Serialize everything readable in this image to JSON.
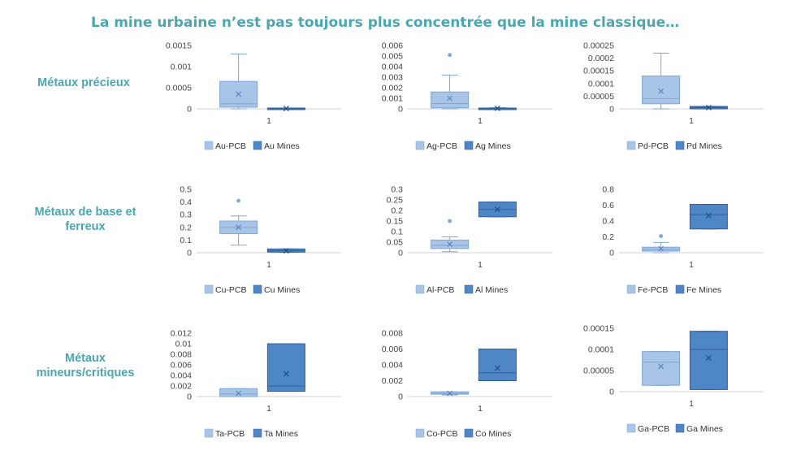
{
  "title": "La mine urbaine n’est pas toujours plus concentrée que la mine classique…",
  "row_labels": [
    "Métaux précieux",
    "Métaux de base et ferreux",
    "Métaux mineurs/critiques"
  ],
  "colors": {
    "pcb": "#a8c4e6",
    "pcb_stroke": "#7ea6d6",
    "mines": "#4f86c6",
    "mines_stroke": "#2f5f98",
    "title": "#4aa6b0"
  },
  "chart_data": [
    {
      "type": "box",
      "xcat": "1",
      "ylim": [
        0,
        0.0015
      ],
      "yticks": [
        "0",
        "0.0005",
        "0.001",
        "0.0015"
      ],
      "ytickvals": [
        0,
        0.0005,
        0.001,
        0.0015
      ],
      "series": [
        {
          "name": "Au-PCB",
          "min": 0.0,
          "q1": 4e-05,
          "median": 0.00012,
          "q3": 0.00065,
          "max": 0.0013,
          "mean": 0.00035,
          "outliers": []
        },
        {
          "name": "Au Mines",
          "min": 0.0,
          "q1": 0.0,
          "median": 1e-05,
          "q3": 2e-05,
          "max": 2e-05,
          "mean": 1e-05,
          "outliers": []
        }
      ]
    },
    {
      "type": "box",
      "xcat": "1",
      "ylim": [
        0,
        0.006
      ],
      "yticks": [
        "0",
        "0.001",
        "0.002",
        "0.003",
        "0.004",
        "0.005",
        "0.006"
      ],
      "ytickvals": [
        0,
        0.001,
        0.002,
        0.003,
        0.004,
        0.005,
        0.006
      ],
      "series": [
        {
          "name": "Ag-PCB",
          "min": 0.0,
          "q1": 0.0001,
          "median": 0.0005,
          "q3": 0.0016,
          "max": 0.0032,
          "mean": 0.001,
          "outliers": [
            0.0051
          ]
        },
        {
          "name": "Ag Mines",
          "min": 0.0,
          "q1": 2e-05,
          "median": 4e-05,
          "q3": 8e-05,
          "max": 0.0001,
          "mean": 5e-05,
          "outliers": []
        }
      ]
    },
    {
      "type": "box",
      "xcat": "1",
      "ylim": [
        0,
        0.00025
      ],
      "yticks": [
        "0",
        "0.00005",
        "0.0001",
        "0.00015",
        "0.0002",
        "0.00025"
      ],
      "ytickvals": [
        0,
        5e-05,
        0.0001,
        0.00015,
        0.0002,
        0.00025
      ],
      "series": [
        {
          "name": "Pd-PCB",
          "min": 0.0,
          "q1": 2e-05,
          "median": 4e-05,
          "q3": 0.00013,
          "max": 0.00022,
          "mean": 7e-05,
          "outliers": []
        },
        {
          "name": "Pd Mines",
          "min": 0.0,
          "q1": 0.0,
          "median": 5e-06,
          "q3": 1e-05,
          "max": 1e-05,
          "mean": 5e-06,
          "outliers": []
        }
      ]
    },
    {
      "type": "box",
      "xcat": "1",
      "ylim": [
        0,
        0.5
      ],
      "yticks": [
        "0",
        "0.1",
        "0.2",
        "0.3",
        "0.4",
        "0.5"
      ],
      "ytickvals": [
        0,
        0.1,
        0.2,
        0.3,
        0.4,
        0.5
      ],
      "series": [
        {
          "name": "Cu-PCB",
          "min": 0.06,
          "q1": 0.15,
          "median": 0.2,
          "q3": 0.25,
          "max": 0.29,
          "mean": 0.2,
          "outliers": [
            0.41
          ]
        },
        {
          "name": "Cu Mines",
          "min": 0.005,
          "q1": 0.005,
          "median": 0.015,
          "q3": 0.03,
          "max": 0.03,
          "mean": 0.015,
          "outliers": []
        }
      ]
    },
    {
      "type": "box",
      "xcat": "1",
      "ylim": [
        0,
        0.3
      ],
      "yticks": [
        "0",
        "0.05",
        "0.1",
        "0.15",
        "0.2",
        "0.25",
        "0.3"
      ],
      "ytickvals": [
        0,
        0.05,
        0.1,
        0.15,
        0.2,
        0.25,
        0.3
      ],
      "series": [
        {
          "name": "Al-PCB",
          "min": 0.005,
          "q1": 0.02,
          "median": 0.035,
          "q3": 0.06,
          "max": 0.075,
          "mean": 0.04,
          "outliers": [
            0.15
          ]
        },
        {
          "name": "Al Mines",
          "min": 0.17,
          "q1": 0.17,
          "median": 0.205,
          "q3": 0.24,
          "max": 0.24,
          "mean": 0.205,
          "outliers": []
        }
      ]
    },
    {
      "type": "box",
      "xcat": "1",
      "ylim": [
        0,
        0.8
      ],
      "yticks": [
        "0",
        "0.2",
        "0.4",
        "0.6",
        "0.8"
      ],
      "ytickvals": [
        0,
        0.2,
        0.4,
        0.6,
        0.8
      ],
      "series": [
        {
          "name": "Fe-PCB",
          "min": 0.0,
          "q1": 0.02,
          "median": 0.04,
          "q3": 0.07,
          "max": 0.13,
          "mean": 0.05,
          "outliers": [
            0.21
          ]
        },
        {
          "name": "Fe Mines",
          "min": 0.3,
          "q1": 0.3,
          "median": 0.48,
          "q3": 0.61,
          "max": 0.61,
          "mean": 0.47,
          "outliers": []
        }
      ]
    },
    {
      "type": "box",
      "xcat": "1",
      "ylim": [
        0,
        0.012
      ],
      "yticks": [
        "0",
        "0.002",
        "0.004",
        "0.006",
        "0.008",
        "0.01",
        "0.012"
      ],
      "ytickvals": [
        0,
        0.002,
        0.004,
        0.006,
        0.008,
        0.01,
        0.012
      ],
      "series": [
        {
          "name": "Ta-PCB",
          "min": 0.0,
          "q1": 0.0,
          "median": 0.0005,
          "q3": 0.0015,
          "max": 0.0015,
          "mean": 0.0006,
          "outliers": []
        },
        {
          "name": "Ta Mines",
          "min": 0.001,
          "q1": 0.001,
          "median": 0.002,
          "q3": 0.01,
          "max": 0.01,
          "mean": 0.0043,
          "outliers": []
        }
      ]
    },
    {
      "type": "box",
      "xcat": "1",
      "ylim": [
        0,
        0.008
      ],
      "yticks": [
        "0",
        "0.002",
        "0.004",
        "0.006",
        "0.008"
      ],
      "ytickvals": [
        0,
        0.002,
        0.004,
        0.006,
        0.008
      ],
      "series": [
        {
          "name": "Co-PCB",
          "min": 0.0002,
          "q1": 0.0003,
          "median": 0.0004,
          "q3": 0.0006,
          "max": 0.0006,
          "mean": 0.0004,
          "outliers": []
        },
        {
          "name": "Co Mines",
          "min": 0.002,
          "q1": 0.002,
          "median": 0.003,
          "q3": 0.006,
          "max": 0.006,
          "mean": 0.0036,
          "outliers": []
        }
      ]
    },
    {
      "type": "box",
      "xcat": "1",
      "ylim": [
        0,
        0.00015
      ],
      "yticks": [
        "0",
        "0.00005",
        "0.0001",
        "0.00015"
      ],
      "ytickvals": [
        0,
        5e-05,
        0.0001,
        0.00015
      ],
      "series": [
        {
          "name": "Ga-PCB",
          "min": 1.5e-05,
          "q1": 1.5e-05,
          "median": 7e-05,
          "q3": 9.5e-05,
          "max": 9.5e-05,
          "mean": 6e-05,
          "outliers": []
        },
        {
          "name": "Ga Mines",
          "min": 5e-06,
          "q1": 5e-06,
          "median": 0.0001,
          "q3": 0.000143,
          "max": 0.000143,
          "mean": 8e-05,
          "outliers": []
        }
      ]
    }
  ]
}
